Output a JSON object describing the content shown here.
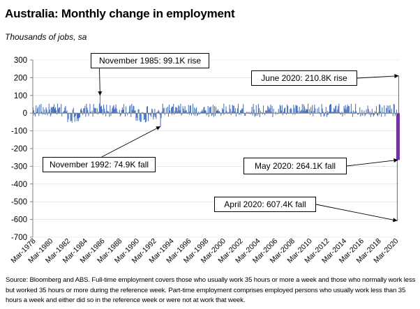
{
  "title": "Australia: Monthly change in employment",
  "subtitle": "Thousands of jobs, sa",
  "source": "Source: Bloomberg and ABS.  Full-time employment covers those who usually work 35 hours or more a week and those who normally work less but worked 35 hours or more during the reference week.  Part-time employment comprises employed persons who usually work less than 35 hours a week and either did so in the reference week or were not at work that week.",
  "colors": {
    "bar": "#4472C4",
    "highlight": "#7030A0",
    "axis": "#808080"
  },
  "chart_data": {
    "type": "bar",
    "ylim": [
      -700,
      300
    ],
    "yticks": [
      300,
      200,
      100,
      0,
      -100,
      -200,
      -300,
      -400,
      -500,
      -600,
      -700
    ],
    "xticks": [
      "Mar-1978",
      "Mar-1980",
      "Mar-1982",
      "Mar-1984",
      "Mar-1986",
      "Mar-1988",
      "Mar-1990",
      "Mar-1992",
      "Mar-1994",
      "Mar-1996",
      "Mar-1998",
      "Mar-2000",
      "Mar-2002",
      "Mar-2004",
      "Mar-2006",
      "Mar-2008",
      "Mar-2010",
      "Mar-2012",
      "Mar-2014",
      "Mar-2016",
      "Mar-2018",
      "Mar-2020"
    ],
    "start": "Feb-1978",
    "end": "Jun-2020",
    "annotations": [
      {
        "label": "November 1985: 99.1K rise",
        "date": "Nov-1985",
        "value": 99.1
      },
      {
        "label": "November 1992: 74.9K fall",
        "date": "Nov-1992",
        "value": -74.9
      },
      {
        "label": "June 2020: 210.8K rise",
        "date": "Jun-2020",
        "value": 210.8
      },
      {
        "label": "May 2020: 264.1K fall",
        "date": "May-2020",
        "value": -264.1
      },
      {
        "label": "April 2020: 607.4K fall",
        "date": "Apr-2020",
        "value": -607.4
      }
    ]
  }
}
